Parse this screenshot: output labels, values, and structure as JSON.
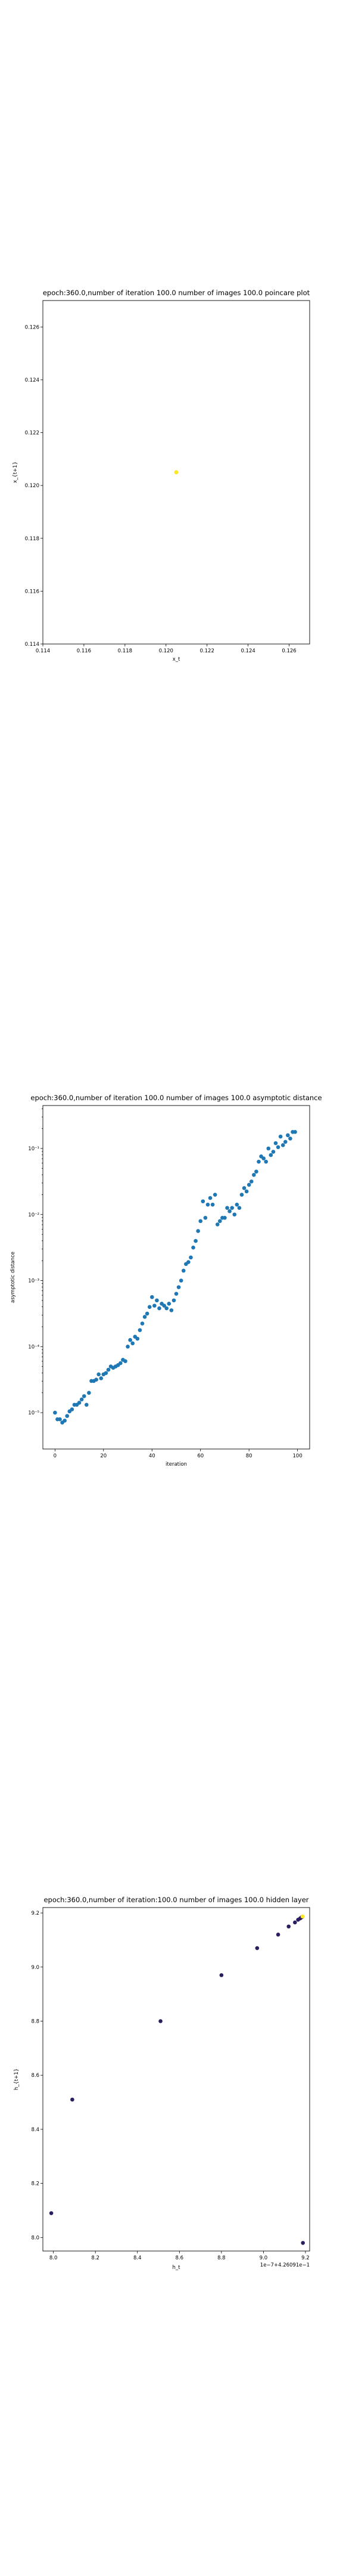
{
  "chart_data": [
    {
      "type": "scatter",
      "title": "epoch:360.0,number of iteration 100.0 number of images 100.0 poincare plot",
      "xlabel": "x_t",
      "ylabel": "x_{t+1}",
      "xlim": [
        0.114,
        0.127
      ],
      "ylim": [
        0.114,
        0.127
      ],
      "xticks": [
        "0.114",
        "0.116",
        "0.118",
        "0.120",
        "0.122",
        "0.124",
        "0.126"
      ],
      "yticks": [
        "0.114",
        "0.116",
        "0.118",
        "0.120",
        "0.122",
        "0.124",
        "0.126"
      ],
      "point_color": "#fde725",
      "points": [
        {
          "x": 0.1205,
          "y": 0.1205
        }
      ]
    },
    {
      "type": "scatter",
      "title": "epoch:360.0,number of iteration 100.0  number of images 100.0 asymptotic distance",
      "xlabel": "iteration",
      "ylabel": "asymptotic distance",
      "xlim": [
        -5,
        105
      ],
      "ylog": true,
      "ylim_exp": [
        -5.55,
        -0.35
      ],
      "xticks": [
        "0",
        "20",
        "40",
        "60",
        "80",
        "100"
      ],
      "yticks": [
        {
          "exp": -5,
          "label": "10⁻⁵"
        },
        {
          "exp": -4,
          "label": "10⁻⁴"
        },
        {
          "exp": -3,
          "label": "10⁻³"
        },
        {
          "exp": -2,
          "label": "10⁻²"
        },
        {
          "exp": -1,
          "label": "10⁻¹"
        }
      ],
      "point_color": "#1f77b4",
      "x": [
        0,
        1,
        2,
        3,
        4,
        5,
        6,
        7,
        8,
        9,
        10,
        11,
        12,
        13,
        14,
        15,
        16,
        17,
        18,
        19,
        20,
        21,
        22,
        23,
        24,
        25,
        26,
        27,
        28,
        29,
        30,
        31,
        32,
        33,
        34,
        35,
        36,
        37,
        38,
        39,
        40,
        41,
        42,
        43,
        44,
        45,
        46,
        47,
        48,
        49,
        50,
        51,
        52,
        53,
        54,
        55,
        56,
        57,
        58,
        59,
        60,
        61,
        62,
        63,
        64,
        65,
        66,
        67,
        68,
        69,
        70,
        71,
        72,
        73,
        74,
        75,
        76,
        77,
        78,
        79,
        80,
        81,
        82,
        83,
        84,
        85,
        86,
        87,
        88,
        89,
        90,
        91,
        92,
        93,
        94,
        95,
        96,
        97,
        98,
        99
      ],
      "log10_y": [
        -5.0,
        -5.1,
        -5.1,
        -5.15,
        -5.12,
        -5.05,
        -4.98,
        -4.95,
        -4.88,
        -4.88,
        -4.85,
        -4.8,
        -4.75,
        -4.88,
        -4.7,
        -4.52,
        -4.52,
        -4.5,
        -4.42,
        -4.48,
        -4.42,
        -4.4,
        -4.35,
        -4.3,
        -4.32,
        -4.3,
        -4.28,
        -4.25,
        -4.2,
        -4.22,
        -4.0,
        -3.9,
        -3.95,
        -3.85,
        -3.88,
        -3.75,
        -3.65,
        -3.55,
        -3.5,
        -3.4,
        -3.25,
        -3.38,
        -3.3,
        -3.42,
        -3.35,
        -3.38,
        -3.42,
        -3.35,
        -3.45,
        -3.3,
        -3.2,
        -3.1,
        -3.0,
        -2.85,
        -2.75,
        -2.72,
        -2.65,
        -2.5,
        -2.4,
        -2.25,
        -2.1,
        -1.8,
        -2.05,
        -1.85,
        -1.75,
        -1.85,
        -1.7,
        -2.15,
        -2.1,
        -2.05,
        -2.05,
        -1.9,
        -1.95,
        -1.9,
        -2.0,
        -1.85,
        -1.9,
        -1.7,
        -1.6,
        -1.65,
        -1.55,
        -1.5,
        -1.4,
        -1.35,
        -1.2,
        -1.12,
        -1.15,
        -1.2,
        -1.0,
        -1.1,
        -1.05,
        -0.92,
        -0.98,
        -0.82,
        -0.95,
        -0.9,
        -0.8,
        -0.85,
        -0.75,
        -0.75
      ]
    },
    {
      "type": "scatter",
      "title": "epoch:360.0,number of iteration:100.0  number of images 100.0 hidden layer",
      "xlabel": "h_t",
      "ylabel": "h_{t+1}",
      "offset_text": "1e−7+4.26091e−1",
      "xlim": [
        7.95,
        9.22
      ],
      "ylim": [
        7.95,
        9.22
      ],
      "xticks": [
        "8.0",
        "8.2",
        "8.4",
        "8.6",
        "8.8",
        "9.0",
        "9.2"
      ],
      "yticks": [
        "8.0",
        "8.2",
        "8.4",
        "8.6",
        "8.8",
        "9.0",
        "9.2"
      ],
      "point_color": "#2c1e5e",
      "last_point_color": "#fde725",
      "points": [
        {
          "x": 7.99,
          "y": 8.09
        },
        {
          "x": 8.09,
          "y": 8.51
        },
        {
          "x": 8.51,
          "y": 8.8
        },
        {
          "x": 8.8,
          "y": 8.97
        },
        {
          "x": 8.97,
          "y": 9.07
        },
        {
          "x": 9.07,
          "y": 9.12
        },
        {
          "x": 9.12,
          "y": 9.15
        },
        {
          "x": 9.15,
          "y": 9.165
        },
        {
          "x": 9.165,
          "y": 9.175
        },
        {
          "x": 9.175,
          "y": 9.18
        },
        {
          "x": 9.18,
          "y": 9.183
        },
        {
          "x": 9.183,
          "y": 9.185
        },
        {
          "x": 9.185,
          "y": 9.186
        },
        {
          "x": 9.186,
          "y": 9.187
        },
        {
          "x": 9.188,
          "y": 7.98
        }
      ]
    }
  ]
}
